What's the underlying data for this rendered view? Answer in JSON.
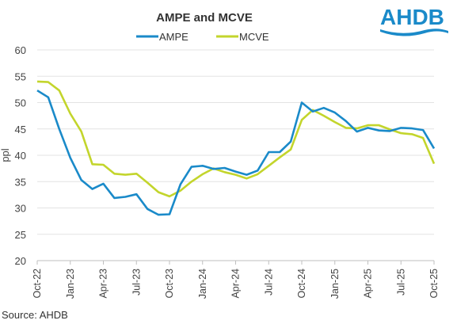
{
  "chart_data": {
    "type": "line",
    "title": "AMPE and MCVE",
    "ylabel": "ppl",
    "ylim": [
      20,
      60
    ],
    "yticks": [
      20,
      25,
      30,
      35,
      40,
      45,
      50,
      55,
      60
    ],
    "x": [
      "Oct-22",
      "Nov-22",
      "Dec-22",
      "Jan-23",
      "Feb-23",
      "Mar-23",
      "Apr-23",
      "May-23",
      "Jun-23",
      "Jul-23",
      "Aug-23",
      "Sep-23",
      "Oct-23",
      "Nov-23",
      "Dec-23",
      "Jan-24",
      "Feb-24",
      "Mar-24",
      "Apr-24",
      "May-24",
      "Jun-24",
      "Jul-24",
      "Aug-24",
      "Sep-24",
      "Oct-24",
      "Nov-24",
      "Dec-24",
      "Jan-25",
      "Feb-25",
      "Mar-25",
      "Apr-25",
      "May-25",
      "Jun-25",
      "Jul-25",
      "Aug-25",
      "Sep-25",
      "Oct-25"
    ],
    "xticks": [
      "Oct-22",
      "Jan-23",
      "Apr-23",
      "Jul-23",
      "Oct-23",
      "Jan-24",
      "Apr-24",
      "Jul-24",
      "Oct-24",
      "Jan-25",
      "Apr-25",
      "Jul-25",
      "Oct-25"
    ],
    "grid": true,
    "legend_position": "top",
    "series": [
      {
        "name": "AMPE",
        "color": "#1a8ac9",
        "values": [
          52.3,
          51.0,
          45.0,
          39.5,
          35.3,
          33.6,
          34.6,
          31.9,
          32.1,
          32.6,
          29.8,
          28.7,
          28.8,
          34.5,
          37.8,
          38.0,
          37.4,
          37.6,
          36.9,
          36.3,
          37.1,
          40.6,
          40.6,
          42.6,
          50.0,
          48.3,
          49.0,
          48.1,
          46.5,
          44.5,
          45.2,
          44.7,
          44.6,
          45.2,
          45.1,
          44.8,
          41.3
        ]
      },
      {
        "name": "MCVE",
        "color": "#c3d52c",
        "values": [
          54.0,
          53.9,
          52.3,
          47.9,
          44.5,
          38.3,
          38.2,
          36.5,
          36.3,
          36.5,
          34.8,
          33.0,
          32.2,
          33.3,
          35.0,
          36.4,
          37.5,
          36.8,
          36.3,
          35.6,
          36.4,
          38.0,
          39.6,
          41.1,
          46.7,
          48.6,
          47.5,
          46.3,
          45.2,
          45.1,
          45.7,
          45.7,
          44.9,
          44.2,
          44.0,
          43.3,
          38.4
        ]
      }
    ]
  },
  "source": "Source: AHDB",
  "logo_text": "AHDB"
}
